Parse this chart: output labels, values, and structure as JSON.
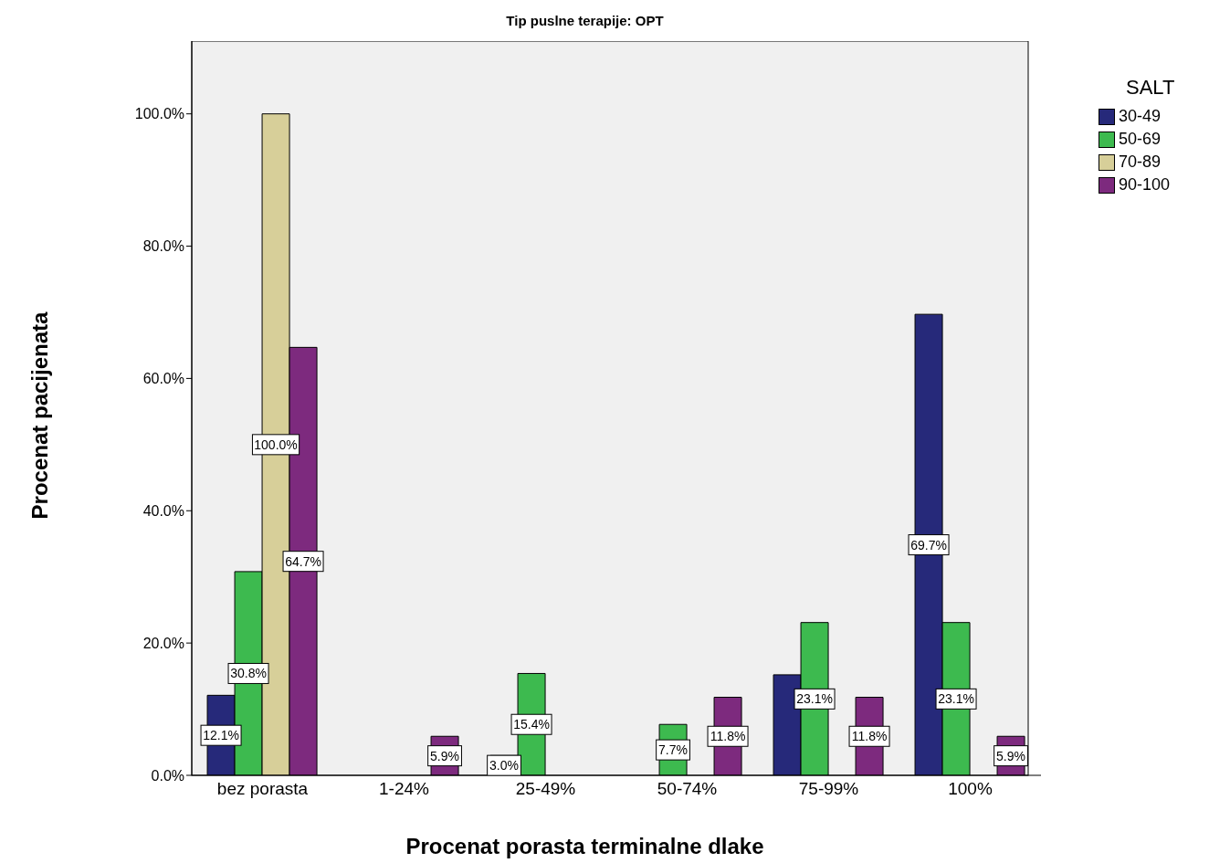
{
  "chart_data": {
    "type": "bar",
    "title": "Tip puslne terapije: OPT",
    "xlabel": "Procenat porasta terminalne dlake",
    "ylabel": "Procenat pacijenata",
    "legend_title": "SALT",
    "legend": "top right",
    "categories": [
      "bez porasta",
      "1-24%",
      "25-49%",
      "50-74%",
      "75-99%",
      "100%"
    ],
    "ylim": [
      0,
      111
    ],
    "yticks": [
      {
        "value": 0,
        "label": "0.0%"
      },
      {
        "value": 20,
        "label": "20.0%"
      },
      {
        "value": 40,
        "label": "40.0%"
      },
      {
        "value": 60,
        "label": "60.0%"
      },
      {
        "value": 80,
        "label": "80.0%"
      },
      {
        "value": 100,
        "label": "100.0%"
      }
    ],
    "series": [
      {
        "name": "30-49",
        "color": "#26297a",
        "values": [
          12.1,
          null,
          3.0,
          null,
          15.2,
          69.7
        ],
        "value_labels": [
          "12.1%",
          null,
          "3.0%",
          null,
          null,
          "69.7%"
        ]
      },
      {
        "name": "50-69",
        "color": "#3dba4f",
        "values": [
          30.8,
          null,
          15.4,
          7.7,
          23.1,
          23.1
        ],
        "value_labels": [
          "30.8%",
          null,
          "15.4%",
          "7.7%",
          "23.1%",
          "23.1%"
        ]
      },
      {
        "name": "70-89",
        "color": "#d7cf99",
        "values": [
          100.0,
          null,
          null,
          null,
          null,
          null
        ],
        "value_labels": [
          "100.0%",
          null,
          null,
          null,
          null,
          null
        ]
      },
      {
        "name": "90-100",
        "color": "#7d2a7e",
        "values": [
          64.7,
          5.9,
          null,
          11.8,
          11.8,
          5.9
        ],
        "value_labels": [
          "64.7%",
          "5.9%",
          null,
          "11.8%",
          "11.8%",
          "5.9%"
        ]
      }
    ]
  }
}
